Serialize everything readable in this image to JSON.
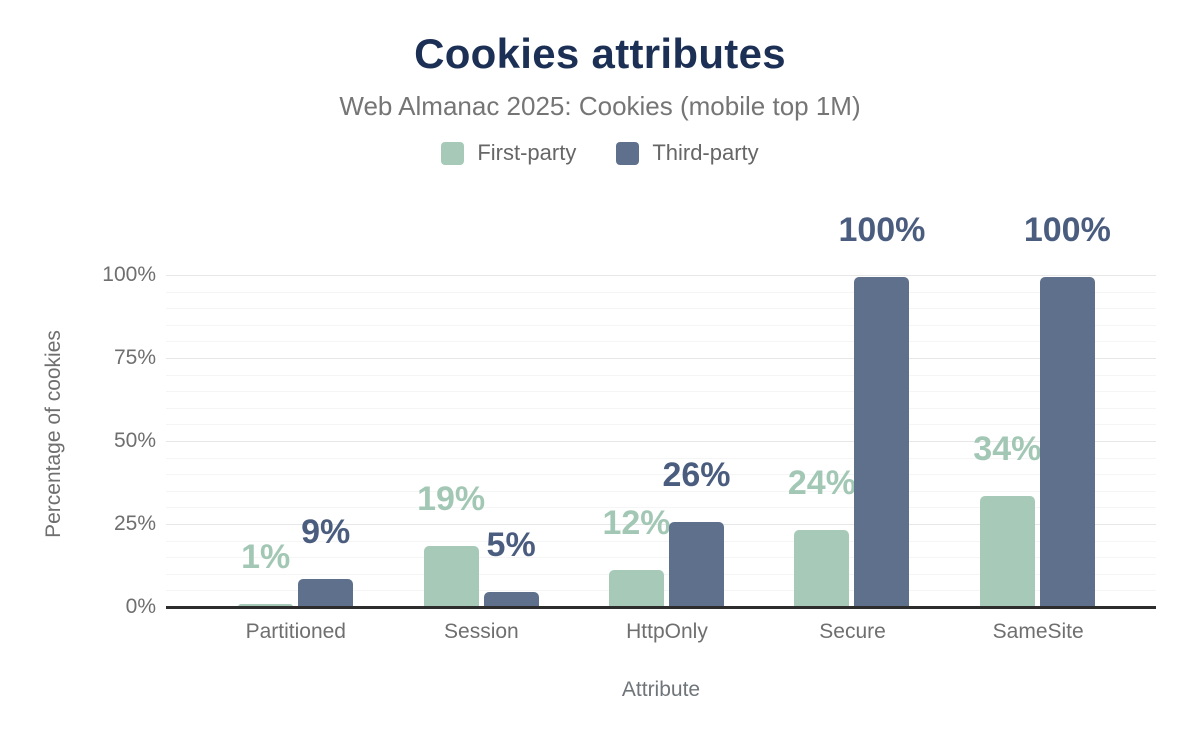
{
  "chart_data": {
    "type": "bar",
    "title": "Cookies attributes",
    "subtitle": "Web Almanac 2025: Cookies (mobile top 1M)",
    "xlabel": "Attribute",
    "ylabel": "Percentage of cookies",
    "categories": [
      "Partitioned",
      "Session",
      "HttpOnly",
      "Secure",
      "SameSite"
    ],
    "series": [
      {
        "name": "First-party",
        "key": "first-party",
        "color": "#a6c9b8",
        "label_color": "#a3c7b5",
        "values": [
          1,
          19,
          12,
          24,
          34
        ],
        "labels": [
          "1%",
          "19%",
          "12%",
          "24%",
          "34%"
        ],
        "draw_heights_pct": [
          0.8,
          18.4,
          11.2,
          23.2,
          33.4
        ]
      },
      {
        "name": "Third-party",
        "key": "third-party",
        "color": "#5f708d",
        "label_color": "#4b5d7f",
        "values": [
          9,
          5,
          26,
          100,
          100
        ],
        "labels": [
          "9%",
          "5%",
          "26%",
          "100%",
          "100%"
        ],
        "draw_heights_pct": [
          8.4,
          4.6,
          25.6,
          99.4,
          99.4
        ]
      }
    ],
    "ylim": [
      0,
      100
    ],
    "y_ticks": [
      {
        "label": "0%",
        "pct": 0
      },
      {
        "label": "25%",
        "pct": 25
      },
      {
        "label": "50%",
        "pct": 50
      },
      {
        "label": "75%",
        "pct": 75
      },
      {
        "label": "100%",
        "pct": 100
      }
    ],
    "grid": {
      "visible": true,
      "minor_step": 5,
      "major_step": 25
    },
    "legend_position": "top"
  },
  "style": {
    "title_color": "#1c2f55",
    "subtitle_color": "#757575",
    "axis_text_color": "#6f6f6f",
    "axis_line_color": "#2d2d2d",
    "major_grid_color": "#e7e7e7",
    "minor_grid_color": "#f5f5f5",
    "background": "#ffffff"
  }
}
